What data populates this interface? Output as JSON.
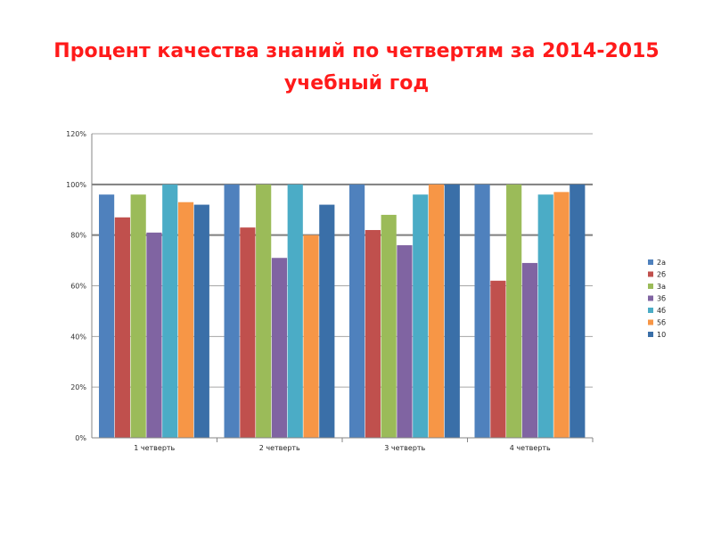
{
  "title_line1": "Процент качества знаний по четвертям за 2014-2015",
  "title_line2": "учебный год",
  "chart_data": {
    "type": "bar",
    "categories": [
      "1 четверть",
      "2 четверть",
      "3 четверть",
      "4 четверть"
    ],
    "series": [
      {
        "name": "2а",
        "color": "#4f81bd",
        "values": [
          96,
          100,
          100,
          100
        ]
      },
      {
        "name": "2б",
        "color": "#c0504d",
        "values": [
          87,
          83,
          82,
          62
        ]
      },
      {
        "name": "3а",
        "color": "#9bbb59",
        "values": [
          96,
          100,
          88,
          100
        ]
      },
      {
        "name": "3б",
        "color": "#8064a2",
        "values": [
          81,
          71,
          76,
          69
        ]
      },
      {
        "name": "4б",
        "color": "#4bacc6",
        "values": [
          100,
          100,
          96,
          96
        ]
      },
      {
        "name": "5б",
        "color": "#f79646",
        "values": [
          93,
          80,
          100,
          97
        ]
      },
      {
        "name": "10",
        "color": "#3a6fa8",
        "values": [
          92,
          92,
          100,
          100
        ]
      }
    ],
    "yticks": [
      "0%",
      "20%",
      "40%",
      "60%",
      "80%",
      "100%",
      "120%"
    ],
    "ylim": [
      0,
      120
    ],
    "grid": true,
    "legend": "right"
  }
}
